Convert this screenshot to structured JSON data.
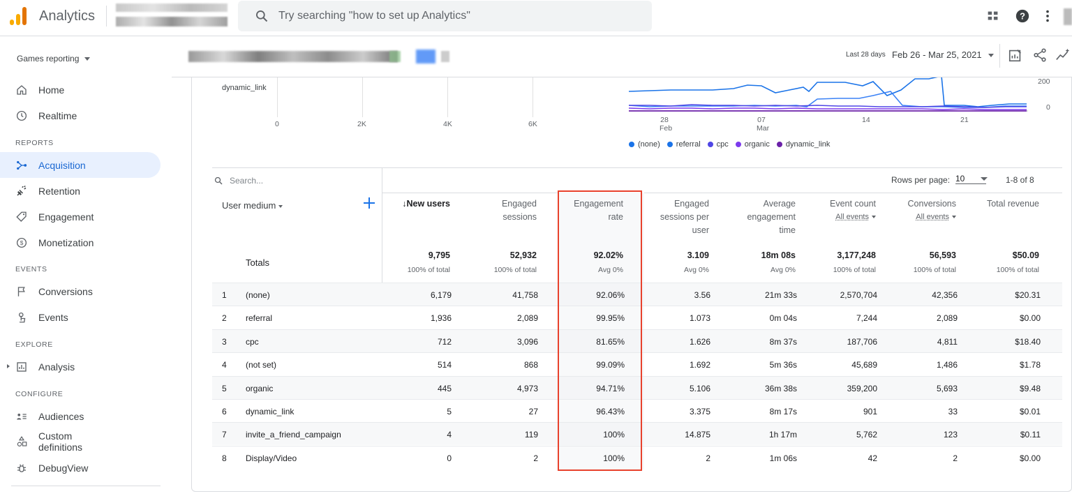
{
  "app": {
    "name": "Analytics",
    "search_placeholder": "Try searching \"how to set up Analytics\""
  },
  "topbar_icons": [
    "apps-grid-icon",
    "help-icon",
    "more-vert-icon"
  ],
  "sidebar": {
    "property": "Games reporting",
    "items": [
      {
        "id": "home",
        "label": "Home",
        "icon": "home-icon"
      },
      {
        "id": "realtime",
        "label": "Realtime",
        "icon": "clock-icon"
      }
    ],
    "sections": [
      {
        "title": "REPORTS",
        "items": [
          {
            "id": "acquisition",
            "label": "Acquisition",
            "icon": "acquisition-icon",
            "active": true
          },
          {
            "id": "retention",
            "label": "Retention",
            "icon": "retention-icon"
          },
          {
            "id": "engagement",
            "label": "Engagement",
            "icon": "tag-icon"
          },
          {
            "id": "monetization",
            "label": "Monetization",
            "icon": "dollar-icon"
          }
        ]
      },
      {
        "title": "EVENTS",
        "items": [
          {
            "id": "conversions",
            "label": "Conversions",
            "icon": "flag-icon"
          },
          {
            "id": "events",
            "label": "Events",
            "icon": "touch-icon"
          }
        ]
      },
      {
        "title": "EXPLORE",
        "items": [
          {
            "id": "analysis",
            "label": "Analysis",
            "icon": "analysis-icon"
          }
        ]
      },
      {
        "title": "CONFIGURE",
        "items": [
          {
            "id": "audiences",
            "label": "Audiences",
            "icon": "audiences-icon"
          },
          {
            "id": "custom-definitions",
            "label": "Custom definitions",
            "label_line1": "Custom",
            "label_line2": "definitions",
            "icon": "shapes-icon"
          },
          {
            "id": "debugview",
            "label": "DebugView",
            "icon": "bug-icon"
          }
        ]
      }
    ]
  },
  "header": {
    "range_label": "Last 28 days",
    "range_value": "Feb 26 - Mar 25, 2021",
    "icons": [
      "customize-report-icon",
      "share-icon",
      "insights-icon"
    ]
  },
  "bar_chart": {
    "category": "dynamic_link",
    "x_ticks": [
      "0",
      "2K",
      "4K",
      "6K"
    ]
  },
  "line_chart": {
    "x_ticks": [
      {
        "day": "28",
        "month": "Feb"
      },
      {
        "day": "07",
        "month": "Mar"
      },
      {
        "day": "14",
        "month": ""
      },
      {
        "day": "21",
        "month": ""
      }
    ],
    "y_ticks": [
      "200",
      "0"
    ],
    "legend": [
      {
        "name": "(none)",
        "color": "#1a73e8"
      },
      {
        "name": "referral",
        "color": "#1a73e8"
      },
      {
        "name": "cpc",
        "color": "#4f46e5"
      },
      {
        "name": "organic",
        "color": "#7c3aed"
      },
      {
        "name": "dynamic_link",
        "color": "#6b21a8"
      }
    ]
  },
  "table": {
    "search_placeholder": "Search...",
    "rows_per_page_label": "Rows per page:",
    "rows_per_page": "10",
    "range": "1-8 of 8",
    "dimension_header": "User medium",
    "columns": [
      {
        "id": "new_users",
        "lines": [
          "↓New users"
        ],
        "sorted": true
      },
      {
        "id": "engaged_sessions",
        "lines": [
          "Engaged",
          "sessions"
        ]
      },
      {
        "id": "engagement_rate",
        "lines": [
          "Engagement",
          "rate"
        ]
      },
      {
        "id": "esu",
        "lines": [
          "Engaged",
          "sessions per",
          "user"
        ]
      },
      {
        "id": "aet",
        "lines": [
          "Average",
          "engagement",
          "time"
        ]
      },
      {
        "id": "event_count",
        "lines": [
          "Event count"
        ],
        "sub": "All events"
      },
      {
        "id": "conversions",
        "lines": [
          "Conversions"
        ],
        "sub": "All events"
      },
      {
        "id": "revenue",
        "lines": [
          "Total revenue"
        ]
      }
    ],
    "totals_label": "Totals",
    "totals": [
      {
        "value": "9,795",
        "sub": "100% of total"
      },
      {
        "value": "52,932",
        "sub": "100% of total"
      },
      {
        "value": "92.02%",
        "sub": "Avg 0%"
      },
      {
        "value": "3.109",
        "sub": "Avg 0%"
      },
      {
        "value": "18m 08s",
        "sub": "Avg 0%"
      },
      {
        "value": "3,177,248",
        "sub": "100% of total"
      },
      {
        "value": "56,593",
        "sub": "100% of total"
      },
      {
        "value": "$50.09",
        "sub": "100% of total"
      }
    ],
    "rows": [
      {
        "idx": "1",
        "medium": "(none)",
        "values": [
          "6,179",
          "41,758",
          "92.06%",
          "3.56",
          "21m 33s",
          "2,570,704",
          "42,356",
          "$20.31"
        ]
      },
      {
        "idx": "2",
        "medium": "referral",
        "values": [
          "1,936",
          "2,089",
          "99.95%",
          "1.073",
          "0m 04s",
          "7,244",
          "2,089",
          "$0.00"
        ]
      },
      {
        "idx": "3",
        "medium": "cpc",
        "values": [
          "712",
          "3,096",
          "81.65%",
          "1.626",
          "8m 37s",
          "187,706",
          "4,811",
          "$18.40"
        ]
      },
      {
        "idx": "4",
        "medium": "(not set)",
        "values": [
          "514",
          "868",
          "99.09%",
          "1.692",
          "5m 36s",
          "45,689",
          "1,486",
          "$1.78"
        ]
      },
      {
        "idx": "5",
        "medium": "organic",
        "values": [
          "445",
          "4,973",
          "94.71%",
          "5.106",
          "36m 38s",
          "359,200",
          "5,693",
          "$9.48"
        ]
      },
      {
        "idx": "6",
        "medium": "dynamic_link",
        "values": [
          "5",
          "27",
          "96.43%",
          "3.375",
          "8m 17s",
          "901",
          "33",
          "$0.01"
        ]
      },
      {
        "idx": "7",
        "medium": "invite_a_friend_campaign",
        "values": [
          "4",
          "119",
          "100%",
          "14.875",
          "1h 17m",
          "5,762",
          "123",
          "$0.11"
        ]
      },
      {
        "idx": "8",
        "medium": "Display/Video",
        "values": [
          "0",
          "2",
          "100%",
          "2",
          "1m 06s",
          "42",
          "2",
          "$0.00"
        ]
      }
    ]
  }
}
